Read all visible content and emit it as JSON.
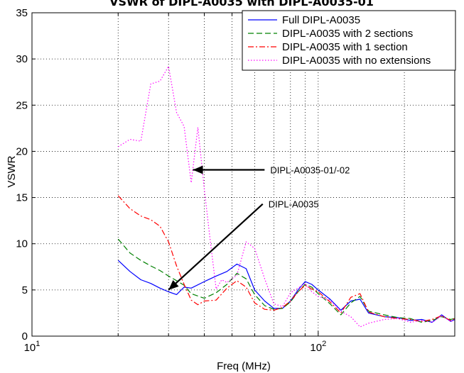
{
  "chart_data": {
    "type": "line",
    "title": "VSWR of DIPL-A0035 with DIPL-A0035-01",
    "xlabel": "Freq (MHz)",
    "ylabel": "VSWR",
    "xscale": "log",
    "xlim": [
      10,
      300
    ],
    "ylim": [
      0,
      35
    ],
    "x_ticks": [
      {
        "value": 10,
        "base": "10",
        "exp": "1"
      },
      {
        "value": 100,
        "base": "10",
        "exp": "2"
      }
    ],
    "y_ticks": [
      0,
      5,
      10,
      15,
      20,
      25,
      30,
      35
    ],
    "grid": true,
    "legend_position": "top-right",
    "series": [
      {
        "name": "Full DIPL-A0035",
        "color": "#0000ff",
        "dash": "solid",
        "points": [
          [
            20,
            8.2
          ],
          [
            22,
            7.0
          ],
          [
            24,
            6.1
          ],
          [
            26,
            5.7
          ],
          [
            28,
            5.2
          ],
          [
            30,
            4.8
          ],
          [
            32,
            4.5
          ],
          [
            34,
            5.3
          ],
          [
            36,
            5.2
          ],
          [
            40,
            5.9
          ],
          [
            44,
            6.5
          ],
          [
            48,
            7.0
          ],
          [
            52,
            7.8
          ],
          [
            56,
            7.3
          ],
          [
            60,
            5.0
          ],
          [
            65,
            3.8
          ],
          [
            70,
            3.0
          ],
          [
            75,
            3.0
          ],
          [
            80,
            3.8
          ],
          [
            85,
            5.0
          ],
          [
            90,
            5.9
          ],
          [
            95,
            5.6
          ],
          [
            100,
            5.0
          ],
          [
            110,
            4.0
          ],
          [
            120,
            2.8
          ],
          [
            130,
            3.8
          ],
          [
            140,
            4.0
          ],
          [
            150,
            2.5
          ],
          [
            170,
            2.1
          ],
          [
            190,
            2.0
          ],
          [
            210,
            1.7
          ],
          [
            230,
            1.8
          ],
          [
            250,
            1.5
          ],
          [
            270,
            2.3
          ],
          [
            290,
            1.6
          ],
          [
            300,
            1.8
          ]
        ]
      },
      {
        "name": "DIPL-A0035 with 2 sections",
        "color": "#008000",
        "dash": "dash",
        "points": [
          [
            20,
            10.5
          ],
          [
            22,
            9.0
          ],
          [
            24,
            8.2
          ],
          [
            26,
            7.6
          ],
          [
            28,
            7.1
          ],
          [
            30,
            6.5
          ],
          [
            32,
            6.0
          ],
          [
            34,
            5.5
          ],
          [
            36,
            4.6
          ],
          [
            40,
            4.1
          ],
          [
            44,
            4.7
          ],
          [
            48,
            5.6
          ],
          [
            52,
            6.8
          ],
          [
            56,
            6.2
          ],
          [
            60,
            4.5
          ],
          [
            65,
            3.3
          ],
          [
            70,
            2.9
          ],
          [
            75,
            3.0
          ],
          [
            80,
            3.7
          ],
          [
            85,
            4.8
          ],
          [
            90,
            5.6
          ],
          [
            95,
            5.3
          ],
          [
            100,
            4.6
          ],
          [
            110,
            3.5
          ],
          [
            120,
            2.3
          ],
          [
            130,
            3.6
          ],
          [
            140,
            4.3
          ],
          [
            150,
            2.7
          ],
          [
            170,
            2.3
          ],
          [
            190,
            2.0
          ],
          [
            210,
            1.9
          ],
          [
            230,
            1.5
          ],
          [
            250,
            1.7
          ],
          [
            270,
            2.1
          ],
          [
            290,
            1.8
          ],
          [
            300,
            1.9
          ]
        ]
      },
      {
        "name": "DIPL-A0035 with 1 section",
        "color": "#ff0000",
        "dash": "dashdot",
        "points": [
          [
            20,
            15.2
          ],
          [
            22,
            13.8
          ],
          [
            24,
            13.0
          ],
          [
            26,
            12.6
          ],
          [
            28,
            11.9
          ],
          [
            30,
            10.2
          ],
          [
            32,
            7.6
          ],
          [
            34,
            5.6
          ],
          [
            36,
            3.9
          ],
          [
            38,
            3.4
          ],
          [
            40,
            3.8
          ],
          [
            44,
            3.9
          ],
          [
            48,
            5.2
          ],
          [
            52,
            6.0
          ],
          [
            56,
            5.3
          ],
          [
            60,
            3.6
          ],
          [
            65,
            2.9
          ],
          [
            70,
            2.8
          ],
          [
            75,
            3.1
          ],
          [
            80,
            3.8
          ],
          [
            85,
            4.8
          ],
          [
            90,
            5.5
          ],
          [
            95,
            5.1
          ],
          [
            100,
            4.8
          ],
          [
            110,
            3.7
          ],
          [
            120,
            2.5
          ],
          [
            130,
            4.2
          ],
          [
            140,
            4.6
          ],
          [
            150,
            2.6
          ],
          [
            170,
            2.1
          ],
          [
            190,
            1.9
          ],
          [
            210,
            1.8
          ],
          [
            230,
            1.6
          ],
          [
            250,
            1.8
          ],
          [
            270,
            2.2
          ],
          [
            290,
            1.7
          ],
          [
            300,
            1.9
          ]
        ]
      },
      {
        "name": "DIPL-A0035 with no extensions",
        "color": "#ff00ff",
        "dash": "dot",
        "points": [
          [
            20,
            20.5
          ],
          [
            22,
            21.3
          ],
          [
            24,
            21.1
          ],
          [
            26,
            27.3
          ],
          [
            28,
            27.6
          ],
          [
            30,
            29.2
          ],
          [
            32,
            24.2
          ],
          [
            34,
            22.7
          ],
          [
            36,
            16.6
          ],
          [
            38,
            22.6
          ],
          [
            40,
            15.9
          ],
          [
            42,
            10.2
          ],
          [
            44,
            5.1
          ],
          [
            46,
            6.1
          ],
          [
            48,
            5.8
          ],
          [
            52,
            6.6
          ],
          [
            56,
            10.2
          ],
          [
            60,
            9.5
          ],
          [
            65,
            6.2
          ],
          [
            70,
            3.5
          ],
          [
            75,
            3.2
          ],
          [
            80,
            4.7
          ],
          [
            85,
            5.2
          ],
          [
            90,
            5.7
          ],
          [
            95,
            4.8
          ],
          [
            100,
            4.3
          ],
          [
            110,
            3.9
          ],
          [
            120,
            2.7
          ],
          [
            130,
            2.1
          ],
          [
            140,
            1.0
          ],
          [
            150,
            1.4
          ],
          [
            170,
            1.8
          ],
          [
            190,
            1.9
          ],
          [
            210,
            1.5
          ],
          [
            230,
            1.7
          ],
          [
            250,
            1.5
          ],
          [
            270,
            2.2
          ],
          [
            290,
            1.6
          ],
          [
            300,
            1.7
          ]
        ]
      }
    ],
    "annotations": [
      {
        "text": "DIPL-A0035-01/-02",
        "text_x": 68,
        "text_y": 18.0,
        "arrow_x": 36.5,
        "arrow_y": 18.0
      },
      {
        "text": "DIPL-A0035",
        "text_x": 67,
        "text_y": 14.3,
        "arrow_x": 30,
        "arrow_y": 5.0
      }
    ]
  }
}
